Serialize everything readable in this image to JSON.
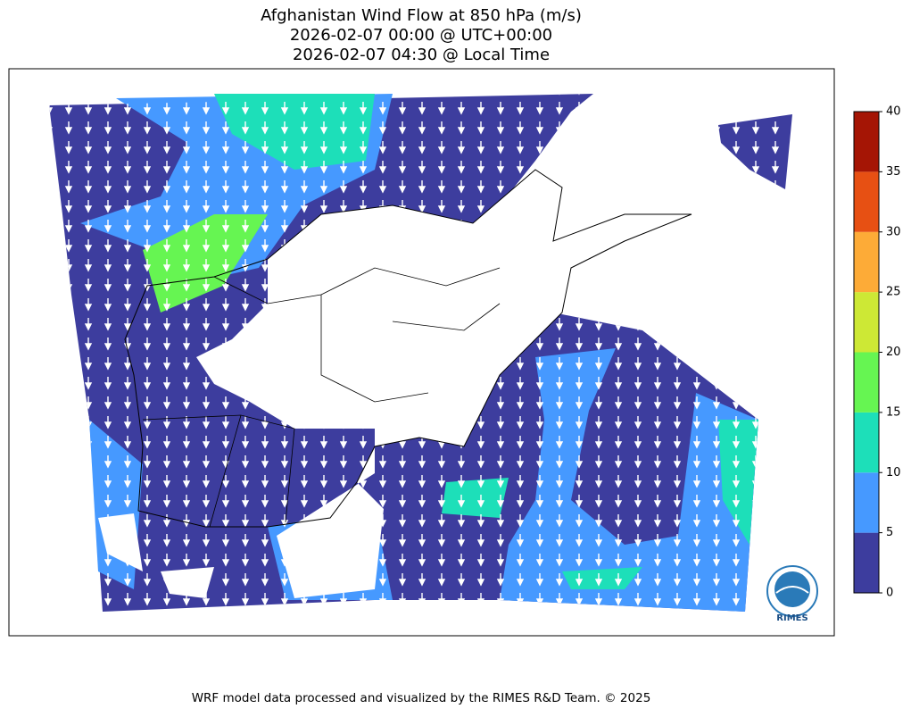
{
  "title": [
    "Afghanistan Wind Flow at 850 hPa (m/s)",
    "2026-02-07 00:00 @ UTC+00:00",
    "2026-02-07 04:30 @ Local Time"
  ],
  "colorbar": {
    "ticks": [
      0,
      5,
      10,
      15,
      20,
      25,
      30,
      35,
      40
    ],
    "colors": [
      "#3d3d9e",
      "#4699ff",
      "#1ddfb9",
      "#66f552",
      "#cde835",
      "#fdab37",
      "#e75013",
      "#a51505"
    ]
  },
  "logo": "RIMES",
  "footer": "WRF model data processed and visualized by the RIMES R&D Team. © 2025"
}
